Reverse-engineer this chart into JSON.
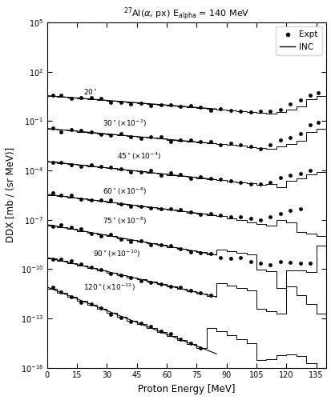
{
  "title": "$^{27}$Al($\\alpha$, px) E$_{\\mathrm{alpha}}$ = 140 MeV",
  "xlabel": "Proton Energy [MeV]",
  "ylabel": "DDX [mb / (sr MeV)]",
  "xlim": [
    0,
    140
  ],
  "ylim_log": [
    -16,
    5
  ],
  "scale_factors": [
    1,
    0.01,
    0.0001,
    1e-06,
    1e-08,
    1e-10,
    1e-12
  ],
  "legend_expt": "Expt",
  "legend_inc": "INC",
  "bg_color": "#ffffff"
}
